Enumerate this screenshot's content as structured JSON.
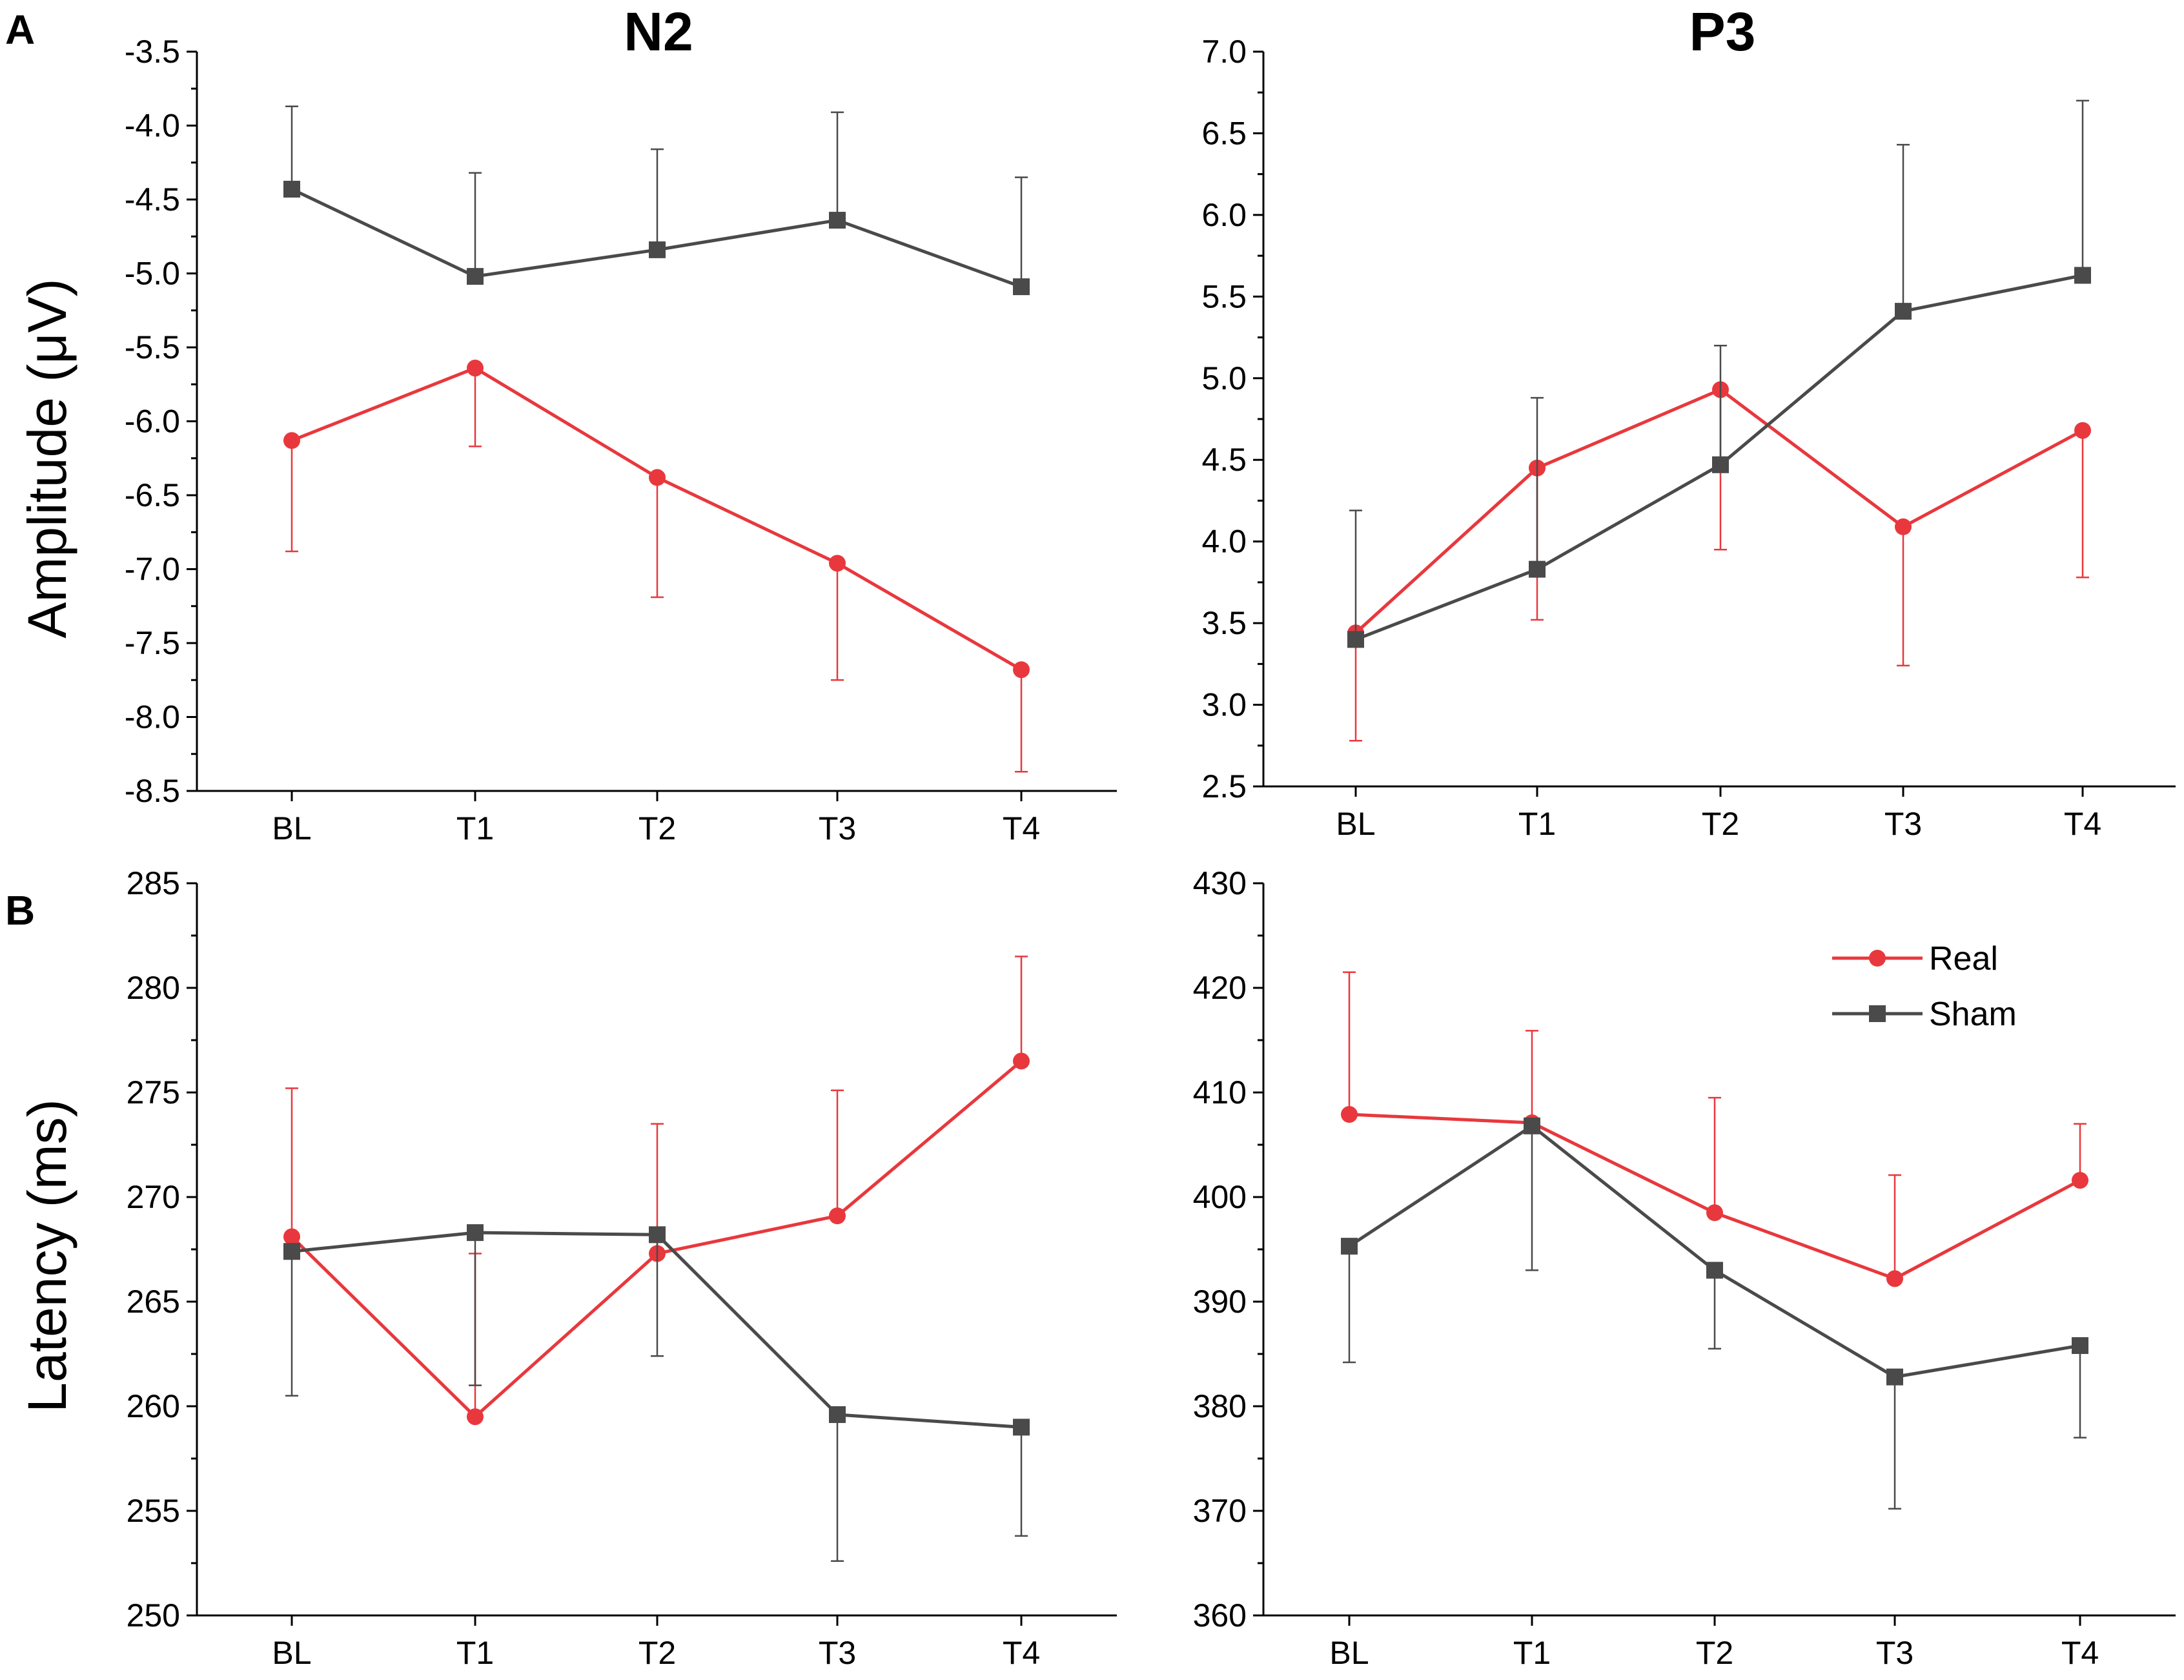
{
  "figure": {
    "panels": {
      "A": "A",
      "B": "B"
    },
    "column_titles": [
      "N2",
      "P3"
    ],
    "row_labels": {
      "amplitude": "Amplitude (μV)",
      "latency": "Latency (ms)"
    },
    "legend": [
      {
        "name": "Real",
        "color": "#e8383d",
        "marker": "circle"
      },
      {
        "name": "Sham",
        "color": "#4a4a4a",
        "marker": "square"
      }
    ]
  },
  "colors": {
    "real": "#e8383d",
    "sham": "#4a4a4a",
    "axis": "#000000"
  },
  "chart_data": [
    {
      "id": "n2-amplitude",
      "type": "line",
      "title": "N2",
      "ylabel": "Amplitude (μV)",
      "categories": [
        "BL",
        "T1",
        "T2",
        "T3",
        "T4"
      ],
      "ylim": [
        -8.5,
        -3.5
      ],
      "yticks": [
        -3.5,
        -4.0,
        -4.5,
        -5.0,
        -5.5,
        -6.0,
        -6.5,
        -7.0,
        -7.5,
        -8.0,
        -8.5
      ],
      "ytick_labels": [
        "-3.5",
        "-4.0",
        "-4.5",
        "-5.0",
        "-5.5",
        "-6.0",
        "-6.5",
        "-7.0",
        "-7.5",
        "-8.0",
        "-8.5"
      ],
      "series": [
        {
          "name": "Real",
          "values": [
            -6.13,
            -5.64,
            -6.38,
            -6.96,
            -7.68
          ],
          "error_ends": [
            -6.88,
            -6.17,
            -7.19,
            -7.75,
            -8.37
          ]
        },
        {
          "name": "Sham",
          "values": [
            -4.43,
            -5.02,
            -4.84,
            -4.64,
            -5.09
          ],
          "error_ends": [
            -3.87,
            -4.32,
            -4.16,
            -3.91,
            -4.35
          ]
        }
      ]
    },
    {
      "id": "p3-amplitude",
      "type": "line",
      "title": "P3",
      "ylabel": "",
      "categories": [
        "BL",
        "T1",
        "T2",
        "T3",
        "T4"
      ],
      "ylim": [
        2.5,
        7.0
      ],
      "yticks": [
        2.5,
        3.0,
        3.5,
        4.0,
        4.5,
        5.0,
        5.5,
        6.0,
        6.5,
        7.0
      ],
      "ytick_labels": [
        "2.5",
        "3.0",
        "3.5",
        "4.0",
        "4.5",
        "5.0",
        "5.5",
        "6.0",
        "6.5",
        "7.0"
      ],
      "series": [
        {
          "name": "Real",
          "values": [
            3.44,
            4.45,
            4.93,
            4.09,
            4.68
          ],
          "error_ends": [
            2.78,
            3.52,
            3.95,
            3.24,
            3.78
          ]
        },
        {
          "name": "Sham",
          "values": [
            3.4,
            3.83,
            4.47,
            5.41,
            5.63
          ],
          "error_ends": [
            4.19,
            4.88,
            5.2,
            6.43,
            6.7
          ]
        }
      ]
    },
    {
      "id": "n2-latency",
      "type": "line",
      "title": "",
      "ylabel": "Latency (ms)",
      "categories": [
        "BL",
        "T1",
        "T2",
        "T3",
        "T4"
      ],
      "ylim": [
        250,
        285
      ],
      "yticks": [
        250,
        255,
        260,
        265,
        270,
        275,
        280,
        285
      ],
      "ytick_labels": [
        "250",
        "255",
        "260",
        "265",
        "270",
        "275",
        "280",
        "285"
      ],
      "series": [
        {
          "name": "Real",
          "values": [
            268.1,
            259.5,
            267.3,
            269.1,
            276.5
          ],
          "error_ends": [
            275.2,
            267.3,
            273.5,
            275.1,
            281.5
          ]
        },
        {
          "name": "Sham",
          "values": [
            267.4,
            268.3,
            268.2,
            259.6,
            259.0
          ],
          "error_ends": [
            260.5,
            261.0,
            262.4,
            252.6,
            253.8
          ]
        }
      ]
    },
    {
      "id": "p3-latency",
      "type": "line",
      "title": "",
      "ylabel": "",
      "categories": [
        "BL",
        "T1",
        "T2",
        "T3",
        "T4"
      ],
      "ylim": [
        360,
        430
      ],
      "yticks": [
        360,
        370,
        380,
        390,
        400,
        410,
        420,
        430
      ],
      "ytick_labels": [
        "360",
        "370",
        "380",
        "390",
        "400",
        "410",
        "420",
        "430"
      ],
      "series": [
        {
          "name": "Real",
          "values": [
            407.9,
            407.1,
            398.5,
            392.2,
            401.6
          ],
          "error_ends": [
            421.5,
            415.9,
            409.5,
            402.1,
            407.0
          ]
        },
        {
          "name": "Sham",
          "values": [
            395.3,
            406.8,
            393.0,
            382.8,
            385.8
          ],
          "error_ends": [
            384.2,
            393.0,
            385.5,
            370.2,
            377.0
          ]
        }
      ],
      "legend_position": "top-right"
    }
  ]
}
